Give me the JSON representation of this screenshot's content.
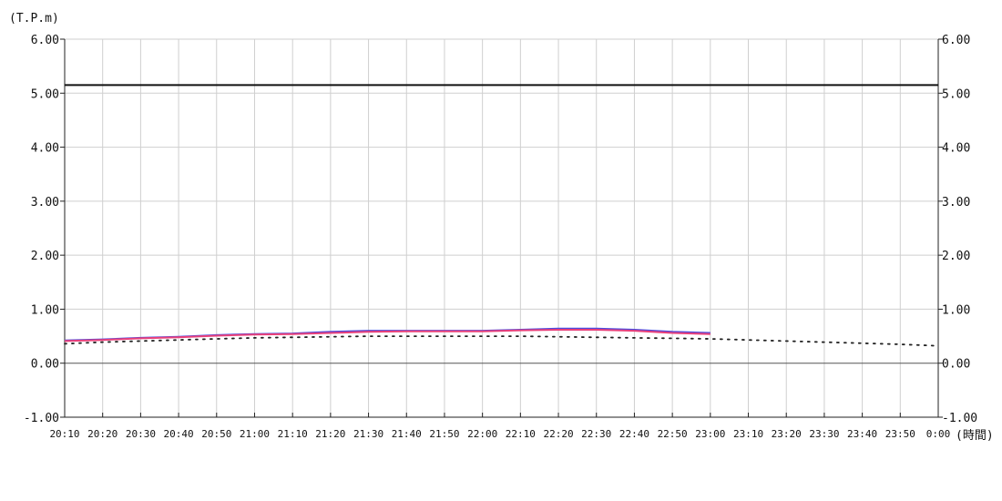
{
  "chart_data": {
    "type": "line",
    "ylabel": "(T.P.m)",
    "xlabel": "(時間)",
    "ylim": [
      -1.0,
      6.0
    ],
    "yticks": [
      "6.00",
      "5.00",
      "4.00",
      "3.00",
      "2.00",
      "1.00",
      "0.00",
      "-1.00"
    ],
    "grid": true,
    "x": [
      "20:10",
      "20:20",
      "20:30",
      "20:40",
      "20:50",
      "21:00",
      "21:10",
      "21:20",
      "21:30",
      "21:40",
      "21:50",
      "22:00",
      "22:10",
      "22:20",
      "22:30",
      "22:40",
      "22:50",
      "23:00",
      "23:10",
      "23:20",
      "23:30",
      "23:40",
      "23:50",
      "0:00"
    ],
    "reference_line": 5.15,
    "series": [
      {
        "style": "solid",
        "color": "#4a4adf",
        "values": [
          0.42,
          0.44,
          0.47,
          0.49,
          0.52,
          0.54,
          0.55,
          0.58,
          0.6,
          0.6,
          0.6,
          0.6,
          0.62,
          0.64,
          0.64,
          0.62,
          0.58,
          0.56,
          null,
          null,
          null,
          null,
          null,
          null
        ]
      },
      {
        "style": "solid",
        "color": "#e8407a",
        "values": [
          0.41,
          0.43,
          0.46,
          0.48,
          0.51,
          0.53,
          0.54,
          0.56,
          0.58,
          0.59,
          0.59,
          0.59,
          0.61,
          0.62,
          0.62,
          0.6,
          0.56,
          0.54,
          null,
          null,
          null,
          null,
          null,
          null
        ]
      },
      {
        "style": "dotted",
        "color": "#222222",
        "values": [
          0.36,
          0.39,
          0.41,
          0.43,
          0.45,
          0.47,
          0.48,
          0.49,
          0.5,
          0.5,
          0.5,
          0.5,
          0.5,
          0.49,
          0.48,
          0.47,
          0.46,
          0.45,
          0.43,
          0.41,
          0.39,
          0.37,
          0.35,
          0.32
        ]
      }
    ]
  }
}
